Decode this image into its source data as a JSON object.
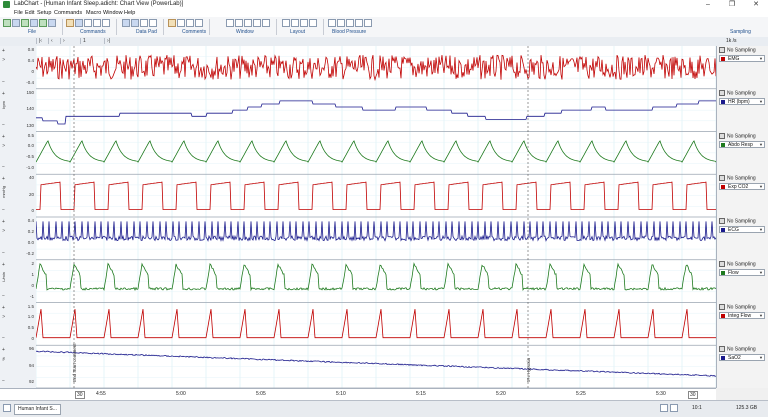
{
  "window": {
    "title": "LabChart - [Human Infant Sleep.adicht: Chart View (PowerLab)]"
  },
  "menu": [
    "File",
    "Edit",
    "Setup",
    "Commands",
    "Macro",
    "Window",
    "Help"
  ],
  "ribbon_groups": [
    "File",
    "Commands",
    "Data Pad",
    "Comments",
    "Window",
    "Layout",
    "Blood Pressure",
    "Sampling"
  ],
  "timebar": {
    "page": "1",
    "rate": "1k /s"
  },
  "channels": [
    {
      "name": "EMG",
      "color": "#c00000",
      "sampling": "No Sampling",
      "unit": "V",
      "ticks": [
        "0.8",
        "0.4",
        "0",
        "-0.4"
      ]
    },
    {
      "name": "HR (bpm)",
      "color": "#1a1a8c",
      "sampling": "No Sampling",
      "unit": "bpm",
      "ticks": [
        "150",
        "140",
        "130"
      ]
    },
    {
      "name": "Abdo Resp",
      "color": "#1e7a1e",
      "sampling": "No Sampling",
      "unit": "V",
      "ticks": [
        "0.5",
        "0.0",
        "-0.5",
        "-1.0"
      ]
    },
    {
      "name": "Exp CO2",
      "color": "#c00000",
      "sampling": "No Sampling",
      "unit": "mmHg",
      "ticks": [
        "40",
        "20",
        "0"
      ]
    },
    {
      "name": "ECG",
      "color": "#1a1a8c",
      "sampling": "No Sampling",
      "unit": "V",
      "ticks": [
        "0.4",
        "0.2",
        "0.0",
        "-0.2"
      ]
    },
    {
      "name": "Flow",
      "color": "#1e7a1e",
      "sampling": "No Sampling",
      "unit": "L/min",
      "ticks": [
        "2",
        "1",
        "0",
        "-1"
      ]
    },
    {
      "name": "Integ Flow",
      "color": "#c00000",
      "sampling": "No Sampling",
      "unit": "V",
      "ticks": [
        "1.5",
        "1.0",
        "0.5",
        "0"
      ]
    },
    {
      "name": "SaO2",
      "color": "#1a1a8c",
      "sampling": "No Sampling",
      "unit": "%",
      "ticks": [
        "96",
        "94",
        "92"
      ]
    }
  ],
  "comments": [
    "End Start comment",
    "5% Hypoxia"
  ],
  "time_axis": {
    "ticks": [
      "4:55",
      "5:00",
      "5:05",
      "5:10",
      "5:15",
      "5:20",
      "5:25",
      "5:30"
    ],
    "start_box": "30",
    "end_box": "30"
  },
  "status": {
    "tab": "Human Infant S...",
    "zoom": "10:1",
    "rate": "125.3 GB"
  }
}
